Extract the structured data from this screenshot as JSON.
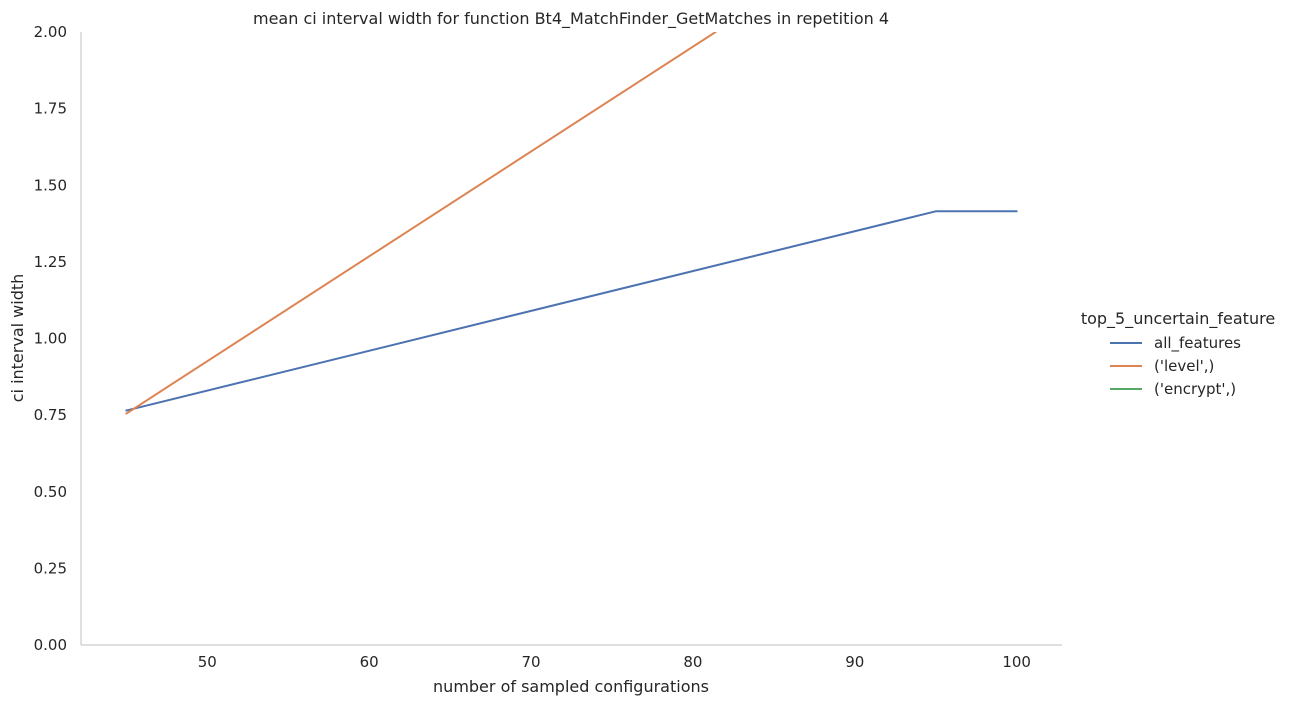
{
  "chart_data": {
    "type": "line",
    "title": "mean ci interval width for function Bt4_MatchFinder_GetMatches in repetition 4",
    "xlabel": "number of sampled configurations",
    "ylabel": "ci interval width",
    "xlim": [
      42.2,
      102.8
    ],
    "ylim": [
      0,
      2
    ],
    "xticks": [
      50,
      60,
      70,
      80,
      90,
      100
    ],
    "yticks": [
      0,
      0.25,
      0.5,
      0.75,
      1.0,
      1.25,
      1.5,
      1.75,
      2.0
    ],
    "ytick_labels": [
      "0.00",
      "0.25",
      "0.50",
      "0.75",
      "1.00",
      "1.25",
      "1.50",
      "1.75",
      "2.00"
    ],
    "xtick_labels": [
      "50",
      "60",
      "70",
      "80",
      "90",
      "100"
    ],
    "grid": false,
    "legend": {
      "title": "top_5_uncertain_feature",
      "placement": "right"
    },
    "series": [
      {
        "name": "all_features",
        "color": "#4c72b0",
        "x": [
          45,
          95,
          100
        ],
        "y": [
          0.765,
          1.415,
          1.415
        ]
      },
      {
        "name": "('level',)",
        "color": "#dd8452",
        "x": [
          45,
          81.4
        ],
        "y": [
          0.755,
          2.0
        ]
      },
      {
        "name": "('encrypt',)",
        "color": "#55a868",
        "x": [],
        "y": []
      }
    ]
  }
}
